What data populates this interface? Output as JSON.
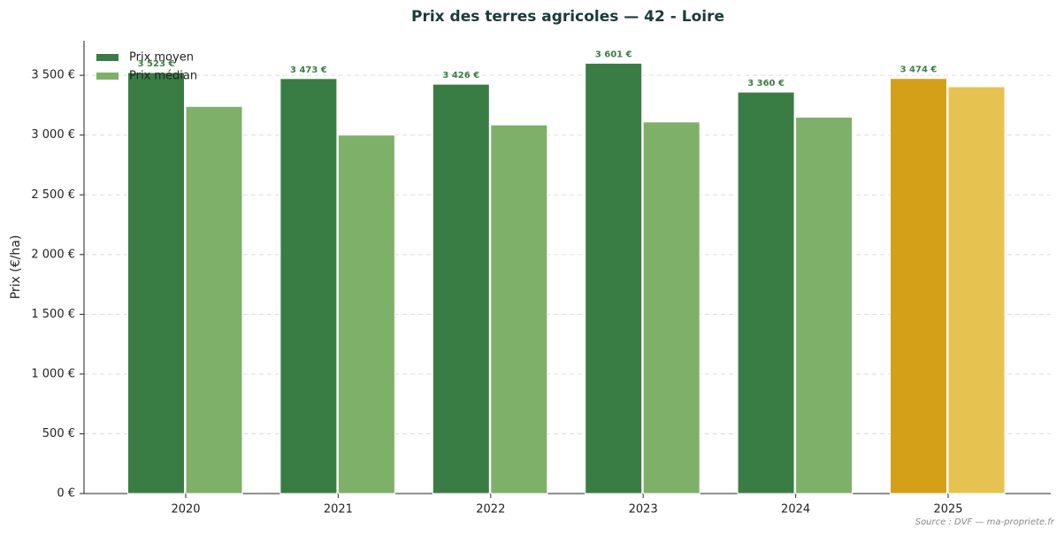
{
  "chart_data": {
    "type": "bar",
    "title": "Prix des terres agricoles — 42 - Loire",
    "y_label": "Prix (€/ha)",
    "source": "Source : DVF — ma-propriete.fr",
    "categories": [
      "2020",
      "2021",
      "2022",
      "2023",
      "2024",
      "2025"
    ],
    "series": [
      {
        "name": "Prix moyen",
        "color": "#3a7d44",
        "colors": [
          "#3a7d44",
          "#3a7d44",
          "#3a7d44",
          "#3a7d44",
          "#3a7d44",
          "#d4a017"
        ],
        "values": [
          3523,
          3473,
          3426,
          3601,
          3360,
          3474
        ],
        "value_labels": [
          "3 523 €",
          "3 473 €",
          "3 426 €",
          "3 601 €",
          "3 360 €",
          "3 474 €"
        ]
      },
      {
        "name": "Prix médian",
        "color": "#7fb06a",
        "colors": [
          "#7fb06a",
          "#7fb06a",
          "#7fb06a",
          "#7fb06a",
          "#7fb06a",
          "#e6c350"
        ],
        "values": [
          3240,
          3000,
          3085,
          3110,
          3150,
          3405
        ]
      }
    ],
    "ylim": [
      0,
      3790
    ],
    "yticks": [
      {
        "value": 0,
        "label": "0 €"
      },
      {
        "value": 500,
        "label": "500 €"
      },
      {
        "value": 1000,
        "label": "1 000 €"
      },
      {
        "value": 1500,
        "label": "1 500 €"
      },
      {
        "value": 2000,
        "label": "2 000 €"
      },
      {
        "value": 2500,
        "label": "2 500 €"
      },
      {
        "value": 3000,
        "label": "3 000 €"
      },
      {
        "value": 3500,
        "label": "3 500 €"
      }
    ],
    "grid": true,
    "legend": "upper left"
  }
}
